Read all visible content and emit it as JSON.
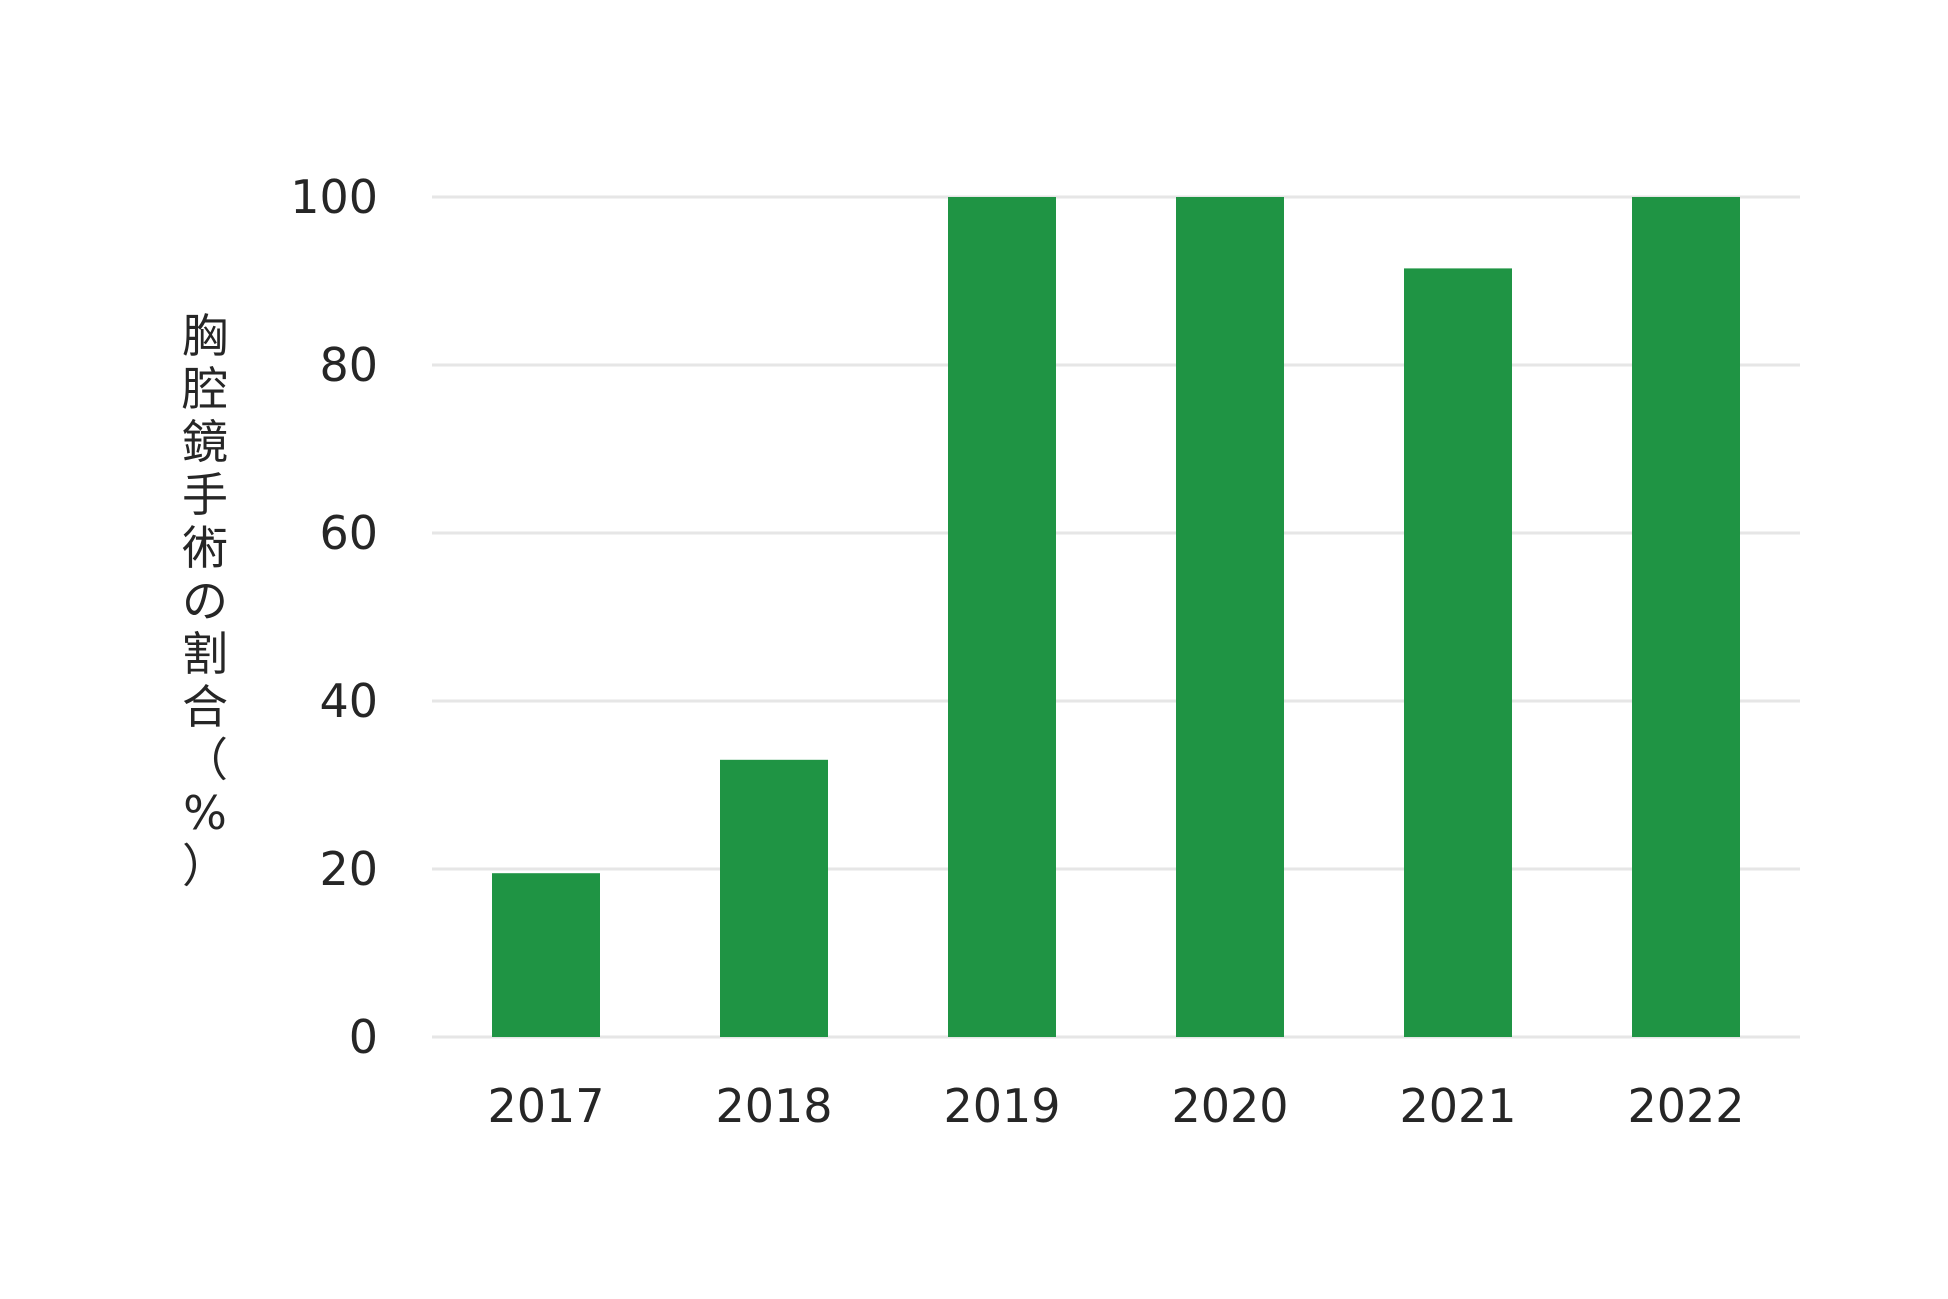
{
  "chart_data": {
    "type": "bar",
    "title": "",
    "xlabel": "",
    "ylabel": "胸腔鏡手術の割合（%）",
    "categories": [
      "2017",
      "2018",
      "2019",
      "2020",
      "2021",
      "2022"
    ],
    "values": [
      19.5,
      33,
      100,
      100,
      91.5,
      100
    ],
    "ylim": [
      0,
      100
    ],
    "yticks": [
      "0",
      "20",
      "40",
      "60",
      "80",
      "100"
    ],
    "grid": true,
    "legend": "none",
    "bar_color": "#1f9444",
    "grid_color": "#e6e6e6",
    "text_color": "#262626"
  }
}
